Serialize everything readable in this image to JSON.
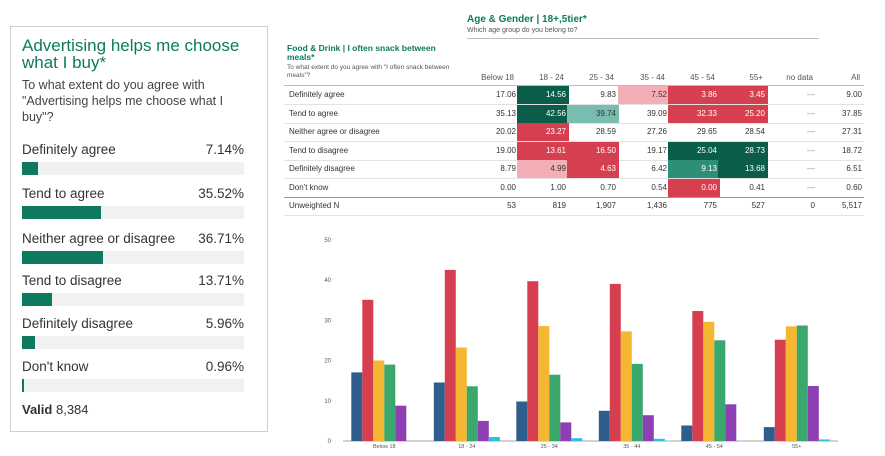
{
  "card": {
    "title": "Advertising helps me choose what I buy*",
    "subtitle": "To what extent do you agree with \"Advertising helps me choose what I buy\"?",
    "options": [
      {
        "label": "Definitely agree",
        "value": "7.14%",
        "pct": 7.14
      },
      {
        "label": "Tend to agree",
        "value": "35.52%",
        "pct": 35.52
      },
      {
        "label": "Neither agree or disagree",
        "value": "36.71%",
        "pct": 36.71
      },
      {
        "label": "Tend to disagree",
        "value": "13.71%",
        "pct": 13.71
      },
      {
        "label": "Definitely disagree",
        "value": "5.96%",
        "pct": 5.96
      },
      {
        "label": "Don't know",
        "value": "0.96%",
        "pct": 0.96
      }
    ],
    "valid_label": "Valid",
    "valid_value": "8,384"
  },
  "table": {
    "title": "Age & Gender | 18+,5tier*",
    "subtitle": "Which age group do you belong to?",
    "question_title": "Food & Drink | I often snack between meals*",
    "question_sub": "To what extent do you agree with \"I often snack between meals\"?",
    "columns": [
      "Below 18",
      "18 - 24",
      "25 - 34",
      "35 - 44",
      "45 - 54",
      "55+",
      "no data",
      "All"
    ],
    "rows": [
      {
        "label": "Definitely agree",
        "cells": [
          "17.06",
          "14.56",
          "9.83",
          "7.52",
          "3.86",
          "3.45",
          "—",
          "9.00"
        ],
        "colors": [
          "",
          "#0a5e49",
          "",
          "#f4aeb5",
          "#d63f4f",
          "#d63f4f",
          "",
          ""
        ]
      },
      {
        "label": "Tend to agree",
        "cells": [
          "35.13",
          "42.56",
          "39.74",
          "39.09",
          "32.33",
          "25.20",
          "—",
          "37.85"
        ],
        "colors": [
          "",
          "#0a5e49",
          "#78bdb0",
          "",
          "#d63f4f",
          "#d63f4f",
          "",
          ""
        ]
      },
      {
        "label": "Neither agree or disagree",
        "cells": [
          "20.02",
          "23.27",
          "28.59",
          "27.26",
          "29.65",
          "28.54",
          "—",
          "27.31"
        ],
        "colors": [
          "",
          "#d63f4f",
          "",
          "",
          "",
          "",
          "",
          ""
        ]
      },
      {
        "label": "Tend to disagree",
        "cells": [
          "19.00",
          "13.61",
          "16.50",
          "19.17",
          "25.04",
          "28.73",
          "—",
          "18.72"
        ],
        "colors": [
          "",
          "#d63f4f",
          "#d63f4f",
          "",
          "#0a5e49",
          "#0a5e49",
          "",
          ""
        ]
      },
      {
        "label": "Definitely disagree",
        "cells": [
          "8.79",
          "4.99",
          "4.63",
          "6.42",
          "9.13",
          "13.68",
          "—",
          "6.51"
        ],
        "colors": [
          "",
          "#f4aeb5",
          "#d63f4f",
          "",
          "#2e8f78",
          "#0a5e49",
          "",
          ""
        ]
      },
      {
        "label": "Don't know",
        "cells": [
          "0.00",
          "1.00",
          "0.70",
          "0.54",
          "0.00",
          "0.41",
          "—",
          "0.60"
        ],
        "colors": [
          "",
          "",
          "",
          "",
          "#d63f4f",
          "",
          "",
          ""
        ]
      },
      {
        "label": "Unweighted N",
        "cells": [
          "53",
          "819",
          "1,907",
          "1,436",
          "775",
          "527",
          "0",
          "5,517"
        ],
        "colors": [
          "",
          "",
          "",
          "",
          "",
          "",
          "",
          ""
        ]
      }
    ]
  },
  "chart_data": {
    "type": "bar",
    "categories": [
      "Below 18",
      "18 - 24",
      "25 - 34",
      "35 - 44",
      "45 - 54",
      "55+"
    ],
    "ylim": [
      0,
      50
    ],
    "yticks": [
      "0",
      "10",
      "20",
      "30",
      "40",
      "50"
    ],
    "series": [
      {
        "color": "#2f5d8c",
        "values": [
          17.06,
          14.56,
          9.83,
          7.52,
          3.86,
          3.45
        ]
      },
      {
        "color": "#d63f4f",
        "values": [
          35.13,
          42.56,
          39.74,
          39.09,
          32.33,
          25.2
        ]
      },
      {
        "color": "#f5b731",
        "values": [
          20.02,
          23.27,
          28.59,
          27.26,
          29.65,
          28.54
        ]
      },
      {
        "color": "#3aa76d",
        "values": [
          19.0,
          13.61,
          16.5,
          19.17,
          25.04,
          28.73
        ]
      },
      {
        "color": "#8e3fb3",
        "values": [
          8.79,
          4.99,
          4.63,
          6.42,
          9.13,
          13.68
        ]
      },
      {
        "color": "#29c4dc",
        "values": [
          0.0,
          1.0,
          0.7,
          0.54,
          0.0,
          0.41
        ]
      }
    ]
  }
}
